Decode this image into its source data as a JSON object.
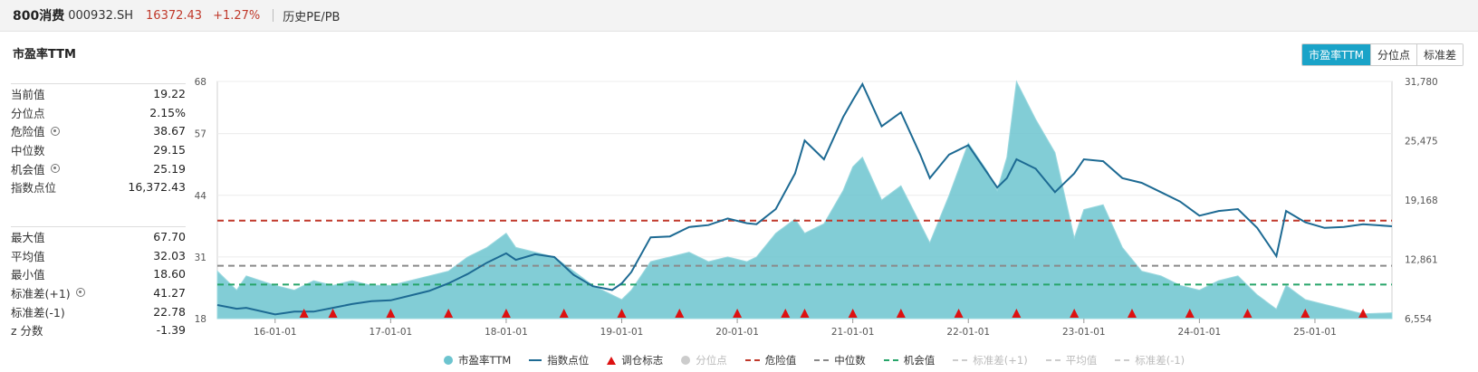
{
  "header": {
    "name": "800消费",
    "code": "000932.SH",
    "price": "16372.43",
    "change": "+1.27%",
    "history_link": "历史PE/PB"
  },
  "panel": {
    "title": "市盈率TTM",
    "buttons": [
      {
        "label": "市盈率TTM",
        "active": true
      },
      {
        "label": "分位点",
        "active": false
      },
      {
        "label": "标准差",
        "active": false
      }
    ]
  },
  "stats_top": [
    {
      "label": "当前值",
      "value": "19.22",
      "gear": false
    },
    {
      "label": "分位点",
      "value": "2.15%",
      "gear": false
    },
    {
      "label": "危险值",
      "value": "38.67",
      "gear": true
    },
    {
      "label": "中位数",
      "value": "29.15",
      "gear": false
    },
    {
      "label": "机会值",
      "value": "25.19",
      "gear": true
    },
    {
      "label": "指数点位",
      "value": "16,372.43",
      "gear": false
    }
  ],
  "stats_bottom": [
    {
      "label": "最大值",
      "value": "67.70",
      "gear": false
    },
    {
      "label": "平均值",
      "value": "32.03",
      "gear": false
    },
    {
      "label": "最小值",
      "value": "18.60",
      "gear": false
    },
    {
      "label": "标准差(+1)",
      "value": "41.27",
      "gear": true
    },
    {
      "label": "标准差(-1)",
      "value": "22.78",
      "gear": false
    },
    {
      "label": "z 分数",
      "value": "-1.39",
      "gear": false
    }
  ],
  "legend": [
    {
      "label": "市盈率TTM",
      "type": "dot",
      "color": "#6cc4cf",
      "off": false
    },
    {
      "label": "指数点位",
      "type": "line",
      "color": "#1d6a93",
      "off": false
    },
    {
      "label": "调仓标志",
      "type": "tri",
      "color": "#dd1111",
      "off": false
    },
    {
      "label": "分位点",
      "type": "dot",
      "color": "#cccccc",
      "off": true
    },
    {
      "label": "危险值",
      "type": "dash",
      "color": "#c0392b",
      "off": false
    },
    {
      "label": "中位数",
      "type": "dash",
      "color": "#888888",
      "off": false
    },
    {
      "label": "机会值",
      "type": "dash",
      "color": "#27a56a",
      "off": false
    },
    {
      "label": "标准差(+1)",
      "type": "dash",
      "color": "#cccccc",
      "off": true
    },
    {
      "label": "平均值",
      "type": "dash",
      "color": "#cccccc",
      "off": true
    },
    {
      "label": "标准差(-1)",
      "type": "dash",
      "color": "#cccccc",
      "off": true
    }
  ],
  "chart_data": {
    "type": "area",
    "x_start": "2015-07",
    "x_end": "2025-09",
    "left_axis": {
      "ticks": [
        "18",
        "31",
        "44",
        "57",
        "68"
      ],
      "min": 18,
      "max": 68
    },
    "right_axis": {
      "ticks": [
        "6,554",
        "12,861",
        "19,168",
        "25,475",
        "31,780"
      ],
      "min": 6554,
      "max": 31780
    },
    "x_ticks": [
      "16-01-01",
      "17-01-01",
      "18-01-01",
      "19-01-01",
      "20-01-01",
      "21-01-01",
      "22-01-01",
      "23-01-01",
      "24-01-01",
      "25-01-01"
    ],
    "x_tick_dates": [
      "2016-01",
      "2017-01",
      "2018-01",
      "2019-01",
      "2020-01",
      "2021-01",
      "2022-01",
      "2023-01",
      "2024-01",
      "2025-01"
    ],
    "reference_lines": [
      {
        "name": "危险值",
        "value": 38.67,
        "color": "#c0392b"
      },
      {
        "name": "中位数",
        "value": 29.15,
        "color": "#8a8a8a"
      },
      {
        "name": "机会值",
        "value": 25.19,
        "color": "#27a56a"
      }
    ],
    "series": [
      {
        "name": "市盈率TTM",
        "axis": "left",
        "color": "#6cc4cf",
        "points": [
          [
            "2015-07",
            28
          ],
          [
            "2015-09",
            24
          ],
          [
            "2015-10",
            27
          ],
          [
            "2016-01",
            25
          ],
          [
            "2016-03",
            24
          ],
          [
            "2016-05",
            26
          ],
          [
            "2016-07",
            25
          ],
          [
            "2016-09",
            26
          ],
          [
            "2016-11",
            25
          ],
          [
            "2017-01",
            25
          ],
          [
            "2017-03",
            26
          ],
          [
            "2017-05",
            27
          ],
          [
            "2017-07",
            28
          ],
          [
            "2017-09",
            31
          ],
          [
            "2017-11",
            33
          ],
          [
            "2018-01",
            36
          ],
          [
            "2018-02",
            33
          ],
          [
            "2018-04",
            32
          ],
          [
            "2018-06",
            31
          ],
          [
            "2018-08",
            28
          ],
          [
            "2018-10",
            25
          ],
          [
            "2018-12",
            23
          ],
          [
            "2019-01",
            22
          ],
          [
            "2019-02",
            24
          ],
          [
            "2019-04",
            30
          ],
          [
            "2019-06",
            31
          ],
          [
            "2019-08",
            32
          ],
          [
            "2019-10",
            30
          ],
          [
            "2019-12",
            31
          ],
          [
            "2020-02",
            30
          ],
          [
            "2020-03",
            31
          ],
          [
            "2020-05",
            36
          ],
          [
            "2020-07",
            39
          ],
          [
            "2020-08",
            36
          ],
          [
            "2020-10",
            38
          ],
          [
            "2020-12",
            45
          ],
          [
            "2021-01",
            50
          ],
          [
            "2021-02",
            52
          ],
          [
            "2021-04",
            43
          ],
          [
            "2021-06",
            46
          ],
          [
            "2021-08",
            38
          ],
          [
            "2021-09",
            34
          ],
          [
            "2021-11",
            44
          ],
          [
            "2022-01",
            55
          ],
          [
            "2022-03",
            49
          ],
          [
            "2022-04",
            45
          ],
          [
            "2022-05",
            52
          ],
          [
            "2022-06",
            68
          ],
          [
            "2022-08",
            60
          ],
          [
            "2022-10",
            53
          ],
          [
            "2022-12",
            35
          ],
          [
            "2023-01",
            41
          ],
          [
            "2023-03",
            42
          ],
          [
            "2023-05",
            33
          ],
          [
            "2023-07",
            28
          ],
          [
            "2023-09",
            27
          ],
          [
            "2023-11",
            25
          ],
          [
            "2024-01",
            24
          ],
          [
            "2024-03",
            26
          ],
          [
            "2024-05",
            27
          ],
          [
            "2024-07",
            23
          ],
          [
            "2024-09",
            20
          ],
          [
            "2024-10",
            25
          ],
          [
            "2024-12",
            22
          ],
          [
            "2025-02",
            21
          ],
          [
            "2025-04",
            20
          ],
          [
            "2025-06",
            19
          ],
          [
            "2025-09",
            19.22
          ]
        ]
      },
      {
        "name": "指数点位",
        "axis": "right",
        "color": "#1d6a93",
        "points": [
          [
            "2015-07",
            8000
          ],
          [
            "2015-09",
            7600
          ],
          [
            "2015-10",
            7700
          ],
          [
            "2016-01",
            7000
          ],
          [
            "2016-03",
            7300
          ],
          [
            "2016-05",
            7300
          ],
          [
            "2016-07",
            7700
          ],
          [
            "2016-09",
            8100
          ],
          [
            "2016-11",
            8400
          ],
          [
            "2017-01",
            8500
          ],
          [
            "2017-03",
            9000
          ],
          [
            "2017-05",
            9500
          ],
          [
            "2017-07",
            10300
          ],
          [
            "2017-09",
            11300
          ],
          [
            "2017-11",
            12500
          ],
          [
            "2018-01",
            13500
          ],
          [
            "2018-02",
            12800
          ],
          [
            "2018-04",
            13400
          ],
          [
            "2018-06",
            13100
          ],
          [
            "2018-08",
            11200
          ],
          [
            "2018-10",
            10000
          ],
          [
            "2018-12",
            9600
          ],
          [
            "2019-01",
            10300
          ],
          [
            "2019-02",
            11500
          ],
          [
            "2019-04",
            15200
          ],
          [
            "2019-06",
            15300
          ],
          [
            "2019-08",
            16300
          ],
          [
            "2019-10",
            16500
          ],
          [
            "2019-12",
            17200
          ],
          [
            "2020-02",
            16700
          ],
          [
            "2020-03",
            16600
          ],
          [
            "2020-05",
            18200
          ],
          [
            "2020-07",
            22000
          ],
          [
            "2020-08",
            25500
          ],
          [
            "2020-10",
            23500
          ],
          [
            "2020-12",
            28000
          ],
          [
            "2021-01",
            29800
          ],
          [
            "2021-02",
            31500
          ],
          [
            "2021-04",
            27000
          ],
          [
            "2021-06",
            28500
          ],
          [
            "2021-08",
            24000
          ],
          [
            "2021-09",
            21500
          ],
          [
            "2021-11",
            24000
          ],
          [
            "2022-01",
            25000
          ],
          [
            "2022-03",
            22000
          ],
          [
            "2022-04",
            20500
          ],
          [
            "2022-05",
            21500
          ],
          [
            "2022-06",
            23500
          ],
          [
            "2022-08",
            22500
          ],
          [
            "2022-10",
            20000
          ],
          [
            "2022-12",
            22000
          ],
          [
            "2023-01",
            23500
          ],
          [
            "2023-03",
            23300
          ],
          [
            "2023-05",
            21500
          ],
          [
            "2023-07",
            21000
          ],
          [
            "2023-09",
            20000
          ],
          [
            "2023-11",
            19000
          ],
          [
            "2024-01",
            17500
          ],
          [
            "2024-03",
            18000
          ],
          [
            "2024-05",
            18200
          ],
          [
            "2024-07",
            16200
          ],
          [
            "2024-09",
            13200
          ],
          [
            "2024-10",
            18000
          ],
          [
            "2024-12",
            16800
          ],
          [
            "2025-02",
            16200
          ],
          [
            "2025-04",
            16300
          ],
          [
            "2025-06",
            16600
          ],
          [
            "2025-09",
            16372.43
          ]
        ]
      }
    ],
    "rebalance_markers": [
      "2016-04",
      "2016-07",
      "2017-01",
      "2017-07",
      "2018-01",
      "2018-07",
      "2019-01",
      "2019-07",
      "2020-01",
      "2020-06",
      "2020-08",
      "2021-01",
      "2021-06",
      "2021-12",
      "2022-06",
      "2022-12",
      "2023-06",
      "2023-12",
      "2024-06",
      "2024-12",
      "2025-06"
    ]
  }
}
